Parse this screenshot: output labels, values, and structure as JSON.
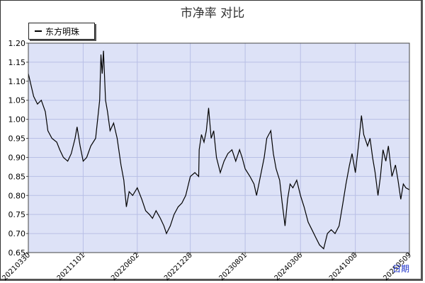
{
  "chart_data": {
    "type": "line",
    "title": "市净率 对比",
    "legend": {
      "entries": [
        "东方明珠"
      ],
      "position": "top-left"
    },
    "x_axis": {
      "label": "日期",
      "tick_labels": [
        "20210330",
        "20211101",
        "20220602",
        "20221228",
        "20230801",
        "20240306",
        "20241008",
        "20250509"
      ]
    },
    "y_axis": {
      "range": [
        0.65,
        1.2
      ],
      "tick_labels": [
        "1.20",
        "1.15",
        "1.10",
        "1.05",
        "1.00",
        "0.95",
        "0.90",
        "0.85",
        "0.80",
        "0.75",
        "0.70",
        "0.65"
      ]
    },
    "grid": true,
    "colors": {
      "plot_background": "#dde2f7",
      "grid": "#b8bfe6",
      "line": "#000000"
    },
    "series": [
      {
        "name": "东方明珠",
        "values": [
          [
            "20210330",
            1.12
          ],
          [
            "20210420",
            1.06
          ],
          [
            "20210505",
            1.04
          ],
          [
            "20210520",
            1.05
          ],
          [
            "20210605",
            1.02
          ],
          [
            "20210615",
            0.97
          ],
          [
            "20210701",
            0.95
          ],
          [
            "20210720",
            0.94
          ],
          [
            "20210801",
            0.92
          ],
          [
            "20210815",
            0.9
          ],
          [
            "20210901",
            0.89
          ],
          [
            "20210915",
            0.91
          ],
          [
            "20210930",
            0.95
          ],
          [
            "20211008",
            0.98
          ],
          [
            "20211020",
            0.93
          ],
          [
            "20211101",
            0.89
          ],
          [
            "20211115",
            0.9
          ],
          [
            "20211201",
            0.93
          ],
          [
            "20211220",
            0.95
          ],
          [
            "20220105",
            1.05
          ],
          [
            "20220110",
            1.17
          ],
          [
            "20220115",
            1.12
          ],
          [
            "20220120",
            1.18
          ],
          [
            "20220128",
            1.05
          ],
          [
            "20220205",
            1.02
          ],
          [
            "20220215",
            0.97
          ],
          [
            "20220301",
            0.99
          ],
          [
            "20220315",
            0.95
          ],
          [
            "20220330",
            0.88
          ],
          [
            "20220410",
            0.84
          ],
          [
            "20220420",
            0.77
          ],
          [
            "20220501",
            0.81
          ],
          [
            "20220515",
            0.8
          ],
          [
            "20220602",
            0.82
          ],
          [
            "20220620",
            0.79
          ],
          [
            "20220705",
            0.76
          ],
          [
            "20220720",
            0.75
          ],
          [
            "20220801",
            0.74
          ],
          [
            "20220815",
            0.76
          ],
          [
            "20220901",
            0.74
          ],
          [
            "20220915",
            0.72
          ],
          [
            "20220925",
            0.7
          ],
          [
            "20221010",
            0.72
          ],
          [
            "20221025",
            0.75
          ],
          [
            "20221110",
            0.77
          ],
          [
            "20221125",
            0.78
          ],
          [
            "20221210",
            0.8
          ],
          [
            "20221228",
            0.85
          ],
          [
            "20230115",
            0.86
          ],
          [
            "20230130",
            0.85
          ],
          [
            "20230201",
            0.92
          ],
          [
            "20230210",
            0.96
          ],
          [
            "20230220",
            0.94
          ],
          [
            "20230301",
            0.97
          ],
          [
            "20230310",
            1.03
          ],
          [
            "20230320",
            0.95
          ],
          [
            "20230330",
            0.97
          ],
          [
            "20230410",
            0.9
          ],
          [
            "20230425",
            0.86
          ],
          [
            "20230510",
            0.89
          ],
          [
            "20230525",
            0.91
          ],
          [
            "20230610",
            0.92
          ],
          [
            "20230625",
            0.89
          ],
          [
            "20230710",
            0.92
          ],
          [
            "20230720",
            0.9
          ],
          [
            "20230801",
            0.87
          ],
          [
            "20230820",
            0.85
          ],
          [
            "20230905",
            0.83
          ],
          [
            "20230915",
            0.8
          ],
          [
            "20230930",
            0.85
          ],
          [
            "20231015",
            0.9
          ],
          [
            "20231025",
            0.95
          ],
          [
            "20231110",
            0.97
          ],
          [
            "20231120",
            0.91
          ],
          [
            "20231201",
            0.87
          ],
          [
            "20231215",
            0.84
          ],
          [
            "20231225",
            0.78
          ],
          [
            "20240105",
            0.72
          ],
          [
            "20240115",
            0.79
          ],
          [
            "20240125",
            0.83
          ],
          [
            "20240205",
            0.82
          ],
          [
            "20240220",
            0.84
          ],
          [
            "20240306",
            0.8
          ],
          [
            "20240320",
            0.77
          ],
          [
            "20240405",
            0.73
          ],
          [
            "20240420",
            0.71
          ],
          [
            "20240505",
            0.69
          ],
          [
            "20240520",
            0.67
          ],
          [
            "20240605",
            0.66
          ],
          [
            "20240620",
            0.7
          ],
          [
            "20240705",
            0.71
          ],
          [
            "20240720",
            0.7
          ],
          [
            "20240805",
            0.72
          ],
          [
            "20240820",
            0.78
          ],
          [
            "20240901",
            0.83
          ],
          [
            "20240915",
            0.88
          ],
          [
            "20240925",
            0.91
          ],
          [
            "20241008",
            0.86
          ],
          [
            "20241020",
            0.93
          ],
          [
            "20241101",
            1.01
          ],
          [
            "20241110",
            0.96
          ],
          [
            "20241125",
            0.93
          ],
          [
            "20241205",
            0.95
          ],
          [
            "20241215",
            0.9
          ],
          [
            "20241225",
            0.86
          ],
          [
            "20250105",
            0.8
          ],
          [
            "20250115",
            0.85
          ],
          [
            "20250125",
            0.92
          ],
          [
            "20250205",
            0.89
          ],
          [
            "20250215",
            0.93
          ],
          [
            "20250301",
            0.85
          ],
          [
            "20250315",
            0.88
          ],
          [
            "20250325",
            0.84
          ],
          [
            "20250405",
            0.79
          ],
          [
            "20250415",
            0.83
          ],
          [
            "20250425",
            0.82
          ],
          [
            "20250509",
            0.815
          ]
        ]
      }
    ]
  }
}
